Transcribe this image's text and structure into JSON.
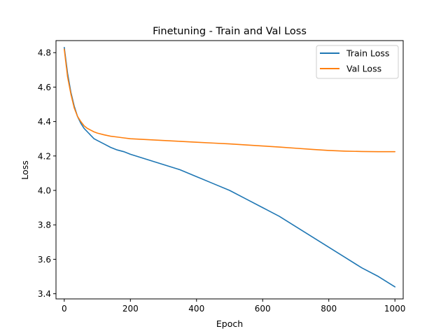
{
  "chart_data": {
    "type": "line",
    "title": "Finetuning - Train and Val Loss",
    "xlabel": "Epoch",
    "ylabel": "Loss",
    "xlim": [
      -25,
      1025
    ],
    "ylim": [
      3.37,
      4.87
    ],
    "xticks": [
      0,
      200,
      400,
      600,
      800,
      1000
    ],
    "yticks": [
      3.4,
      3.6,
      3.8,
      4.0,
      4.2,
      4.4,
      4.6,
      4.8
    ],
    "xtick_labels": [
      "0",
      "200",
      "400",
      "600",
      "800",
      "1000"
    ],
    "ytick_labels": [
      "3.4",
      "3.6",
      "3.8",
      "4.0",
      "4.2",
      "4.4",
      "4.6",
      "4.8"
    ],
    "grid": false,
    "legend_position": "top-right",
    "series": [
      {
        "name": "Train Loss",
        "color": "#1f77b4",
        "x": [
          0,
          10,
          20,
          30,
          40,
          50,
          60,
          70,
          80,
          90,
          100,
          120,
          140,
          160,
          180,
          200,
          250,
          300,
          350,
          400,
          450,
          500,
          550,
          600,
          650,
          700,
          750,
          800,
          850,
          900,
          950,
          1000
        ],
        "values": [
          4.83,
          4.68,
          4.57,
          4.49,
          4.43,
          4.39,
          4.36,
          4.34,
          4.32,
          4.3,
          4.29,
          4.27,
          4.25,
          4.235,
          4.225,
          4.21,
          4.18,
          4.15,
          4.12,
          4.08,
          4.04,
          4.0,
          3.95,
          3.9,
          3.85,
          3.79,
          3.73,
          3.67,
          3.61,
          3.55,
          3.5,
          3.44
        ]
      },
      {
        "name": "Val Loss",
        "color": "#ff7f0e",
        "x": [
          0,
          10,
          20,
          30,
          40,
          50,
          60,
          70,
          80,
          90,
          100,
          120,
          140,
          160,
          180,
          200,
          250,
          300,
          350,
          400,
          450,
          500,
          550,
          600,
          650,
          700,
          750,
          800,
          850,
          900,
          950,
          1000
        ],
        "values": [
          4.82,
          4.66,
          4.56,
          4.48,
          4.43,
          4.4,
          4.375,
          4.36,
          4.35,
          4.34,
          4.333,
          4.323,
          4.315,
          4.31,
          4.305,
          4.3,
          4.295,
          4.29,
          4.285,
          4.28,
          4.275,
          4.27,
          4.264,
          4.258,
          4.252,
          4.245,
          4.238,
          4.232,
          4.228,
          4.226,
          4.225,
          4.225
        ]
      }
    ]
  }
}
